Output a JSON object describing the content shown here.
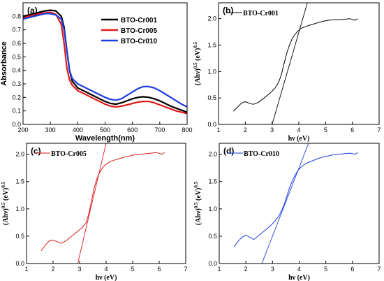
{
  "chart_data": [
    {
      "id": "a",
      "type": "line",
      "panel_label": "(a)",
      "xlabel": "Wavelength(nm)",
      "ylabel": "Absorbance",
      "xlim": [
        200,
        800
      ],
      "ylim": [
        0.0,
        0.9
      ],
      "xticks": [
        200,
        300,
        400,
        500,
        600,
        700,
        800
      ],
      "yticks": [
        0.0,
        0.1,
        0.2,
        0.3,
        0.4,
        0.5,
        0.6,
        0.7,
        0.8
      ],
      "legend_position": "top-right",
      "series": [
        {
          "name": "BTO-Cr001",
          "color": "#000000",
          "x": [
            200,
            220,
            240,
            260,
            280,
            300,
            320,
            340,
            350,
            360,
            370,
            380,
            400,
            420,
            440,
            460,
            480,
            500,
            520,
            540,
            560,
            580,
            600,
            620,
            640,
            660,
            680,
            700,
            720,
            740,
            760,
            780,
            800
          ],
          "y": [
            0.8,
            0.81,
            0.82,
            0.83,
            0.84,
            0.845,
            0.84,
            0.8,
            0.72,
            0.55,
            0.4,
            0.32,
            0.27,
            0.25,
            0.23,
            0.21,
            0.19,
            0.17,
            0.155,
            0.15,
            0.16,
            0.175,
            0.19,
            0.2,
            0.205,
            0.2,
            0.19,
            0.175,
            0.155,
            0.135,
            0.12,
            0.105,
            0.09
          ]
        },
        {
          "name": "BTO-Cr005",
          "color": "#e01b1b",
          "x": [
            200,
            220,
            240,
            260,
            280,
            300,
            320,
            340,
            350,
            360,
            370,
            380,
            400,
            420,
            440,
            460,
            480,
            500,
            520,
            540,
            560,
            580,
            600,
            620,
            640,
            660,
            680,
            700,
            720,
            740,
            760,
            780,
            800
          ],
          "y": [
            0.79,
            0.8,
            0.81,
            0.82,
            0.825,
            0.83,
            0.815,
            0.74,
            0.6,
            0.42,
            0.33,
            0.29,
            0.25,
            0.23,
            0.21,
            0.19,
            0.17,
            0.15,
            0.135,
            0.13,
            0.135,
            0.145,
            0.155,
            0.165,
            0.17,
            0.17,
            0.16,
            0.145,
            0.13,
            0.115,
            0.1,
            0.09,
            0.08
          ]
        },
        {
          "name": "BTO-Cr010",
          "color": "#1e3de0",
          "x": [
            200,
            220,
            240,
            260,
            280,
            300,
            320,
            340,
            350,
            360,
            370,
            380,
            400,
            420,
            440,
            460,
            480,
            500,
            520,
            540,
            560,
            580,
            600,
            620,
            640,
            660,
            680,
            700,
            720,
            740,
            760,
            780,
            800
          ],
          "y": [
            0.78,
            0.79,
            0.8,
            0.81,
            0.82,
            0.82,
            0.81,
            0.78,
            0.7,
            0.55,
            0.4,
            0.34,
            0.3,
            0.28,
            0.26,
            0.24,
            0.22,
            0.2,
            0.185,
            0.18,
            0.19,
            0.215,
            0.24,
            0.265,
            0.28,
            0.28,
            0.27,
            0.25,
            0.225,
            0.2,
            0.175,
            0.15,
            0.13
          ]
        }
      ]
    },
    {
      "id": "b",
      "type": "line",
      "panel_label": "(b)",
      "xlabel": "hν (eV)",
      "ylabel": "(Ahν)^0.5 (eV)^0.5",
      "xlim": [
        1,
        7
      ],
      "ylim": [
        0,
        2.3
      ],
      "xticks": [
        1,
        2,
        3,
        4,
        5,
        6,
        7
      ],
      "yticks": [
        0.0,
        0.5,
        1.0,
        1.5,
        2.0
      ],
      "legend_position": "top-left",
      "series": [
        {
          "name": "BTO-Cr001",
          "color": "#000000",
          "x": [
            1.55,
            1.7,
            1.85,
            2.0,
            2.15,
            2.3,
            2.5,
            2.7,
            2.9,
            3.1,
            3.25,
            3.35,
            3.45,
            3.55,
            3.65,
            3.75,
            3.85,
            3.95,
            4.1,
            4.3,
            4.5,
            4.7,
            4.9,
            5.1,
            5.3,
            5.5,
            5.7,
            5.9,
            6.1,
            6.2
          ],
          "y": [
            0.25,
            0.32,
            0.4,
            0.43,
            0.4,
            0.38,
            0.42,
            0.5,
            0.58,
            0.68,
            0.8,
            0.95,
            1.15,
            1.35,
            1.5,
            1.62,
            1.7,
            1.76,
            1.82,
            1.86,
            1.89,
            1.92,
            1.95,
            1.97,
            1.98,
            1.98,
            1.99,
            2.0,
            1.97,
            2.0
          ]
        },
        {
          "name": "",
          "color": "#000000",
          "x": [
            3.0,
            4.35
          ],
          "y": [
            0.0,
            2.35
          ]
        }
      ]
    },
    {
      "id": "c",
      "type": "line",
      "panel_label": "(c)",
      "xlabel": "hν (eV)",
      "ylabel": "(Ahν)^0.5 (eV)^0.5",
      "xlim": [
        1,
        7
      ],
      "ylim": [
        0.0,
        2.2
      ],
      "xticks": [
        1,
        2,
        3,
        4,
        5,
        6,
        7
      ],
      "yticks": [
        0.0,
        0.5,
        1.0,
        1.5,
        2.0
      ],
      "legend_position": "top-left",
      "series": [
        {
          "name": "BTO-Cr005",
          "color": "#e01b1b",
          "x": [
            1.55,
            1.7,
            1.85,
            2.0,
            2.15,
            2.3,
            2.5,
            2.7,
            2.9,
            3.1,
            3.25,
            3.35,
            3.45,
            3.55,
            3.65,
            3.75,
            3.85,
            3.95,
            4.1,
            4.3,
            4.5,
            4.7,
            4.9,
            5.1,
            5.3,
            5.5,
            5.7,
            5.9,
            6.1,
            6.2
          ],
          "y": [
            0.23,
            0.33,
            0.41,
            0.43,
            0.4,
            0.37,
            0.42,
            0.5,
            0.58,
            0.66,
            0.75,
            0.92,
            1.15,
            1.38,
            1.55,
            1.66,
            1.74,
            1.8,
            1.85,
            1.89,
            1.92,
            1.95,
            1.97,
            1.99,
            2.0,
            2.01,
            2.02,
            2.03,
            2.0,
            2.03
          ]
        },
        {
          "name": "",
          "color": "#e01b1b",
          "x": [
            2.93,
            4.0
          ],
          "y": [
            0.0,
            2.2
          ]
        }
      ]
    },
    {
      "id": "d",
      "type": "line",
      "panel_label": "(d)",
      "xlabel": "hν (eV)",
      "ylabel": "(Ahν)^0.5 (eV)^0.5",
      "xlim": [
        1,
        7
      ],
      "ylim": [
        0.0,
        2.2
      ],
      "xticks": [
        1,
        2,
        3,
        4,
        5,
        6,
        7
      ],
      "yticks": [
        0.0,
        0.5,
        1.0,
        1.5,
        2.0
      ],
      "legend_position": "top-left",
      "series": [
        {
          "name": "BTO-Cr010",
          "color": "#1e3de0",
          "x": [
            1.55,
            1.7,
            1.85,
            2.0,
            2.15,
            2.3,
            2.5,
            2.7,
            2.9,
            3.1,
            3.25,
            3.35,
            3.45,
            3.55,
            3.65,
            3.75,
            3.85,
            3.95,
            4.1,
            4.3,
            4.5,
            4.7,
            4.9,
            5.1,
            5.3,
            5.5,
            5.7,
            5.9,
            6.1,
            6.2
          ],
          "y": [
            0.3,
            0.4,
            0.48,
            0.52,
            0.48,
            0.44,
            0.52,
            0.6,
            0.68,
            0.78,
            0.88,
            0.98,
            1.1,
            1.25,
            1.4,
            1.52,
            1.62,
            1.7,
            1.78,
            1.84,
            1.88,
            1.92,
            1.95,
            1.97,
            1.99,
            2.0,
            2.01,
            2.02,
            2.0,
            2.03
          ]
        },
        {
          "name": "",
          "color": "#1e3de0",
          "x": [
            2.6,
            4.35
          ],
          "y": [
            0.0,
            2.2
          ]
        }
      ]
    }
  ]
}
